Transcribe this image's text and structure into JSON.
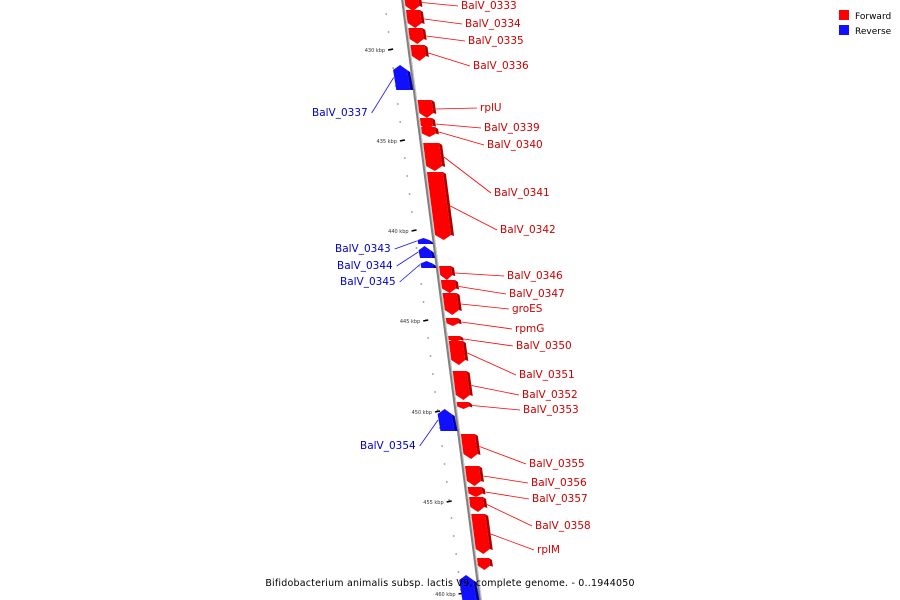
{
  "caption": "Bifidobacterium animalis subsp. lactis V9, complete genome. - 0..1944050",
  "legend": [
    {
      "label": "Forward",
      "color": "#ff0000"
    },
    {
      "label": "Reverse",
      "color": "#1010ff"
    }
  ],
  "tick_labels": [
    "430 kbp",
    "435 kbp",
    "440 kbp",
    "445 kbp",
    "450 kbp",
    "455 kbp",
    "460 kbp"
  ],
  "genes": [
    {
      "name": "BalV_0333",
      "strand": "forward"
    },
    {
      "name": "BalV_0334",
      "strand": "forward"
    },
    {
      "name": "BalV_0335",
      "strand": "forward"
    },
    {
      "name": "BalV_0336",
      "strand": "forward"
    },
    {
      "name": "BalV_0337",
      "strand": "reverse"
    },
    {
      "name": "rplU",
      "strand": "forward"
    },
    {
      "name": "BalV_0339",
      "strand": "forward"
    },
    {
      "name": "BalV_0340",
      "strand": "forward"
    },
    {
      "name": "BalV_0341",
      "strand": "forward"
    },
    {
      "name": "BalV_0342",
      "strand": "forward"
    },
    {
      "name": "BalV_0343",
      "strand": "reverse"
    },
    {
      "name": "BalV_0344",
      "strand": "reverse"
    },
    {
      "name": "BalV_0345",
      "strand": "reverse"
    },
    {
      "name": "BalV_0346",
      "strand": "forward"
    },
    {
      "name": "BalV_0347",
      "strand": "forward"
    },
    {
      "name": "groES",
      "strand": "forward"
    },
    {
      "name": "rpmG",
      "strand": "forward"
    },
    {
      "name": "BalV_0350",
      "strand": "forward"
    },
    {
      "name": "BalV_0351",
      "strand": "forward"
    },
    {
      "name": "BalV_0352",
      "strand": "forward"
    },
    {
      "name": "BalV_0353",
      "strand": "forward"
    },
    {
      "name": "BalV_0354",
      "strand": "reverse"
    },
    {
      "name": "BalV_0355",
      "strand": "forward"
    },
    {
      "name": "BalV_0356",
      "strand": "forward"
    },
    {
      "name": "BalV_0357",
      "strand": "forward"
    },
    {
      "name": "BalV_0358",
      "strand": "forward"
    },
    {
      "name": "rplM",
      "strand": "forward"
    },
    {
      "name": "",
      "strand": "forward"
    },
    {
      "name": "",
      "strand": "reverse"
    }
  ]
}
